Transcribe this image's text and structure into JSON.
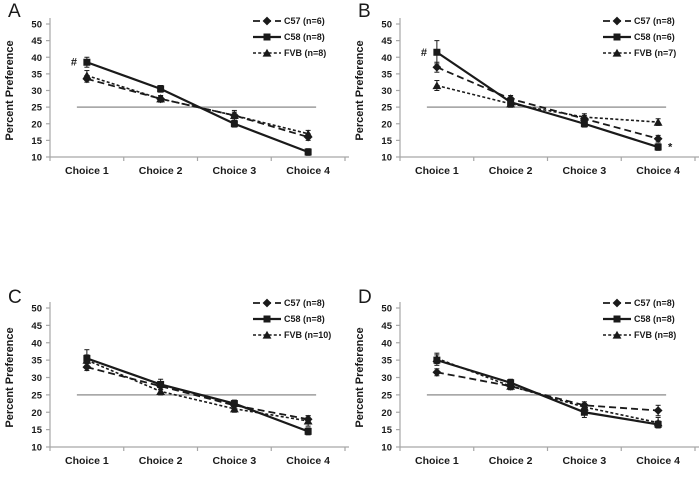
{
  "figure": {
    "background": "#ffffff",
    "text_color": "#1a1a1a",
    "axis_color": "#a6a6a6",
    "series_color": "#1a1a1a",
    "reference_line_color": "#9d9d9d"
  },
  "chart_data": [
    {
      "panel": "A",
      "type": "line",
      "categories": [
        "Choice 1",
        "Choice 2",
        "Choice 3",
        "Choice 4"
      ],
      "xlabel": "",
      "ylabel": "Percent Preference",
      "ylim": [
        10,
        50
      ],
      "yticks": [
        10,
        15,
        20,
        25,
        30,
        35,
        40,
        45,
        50
      ],
      "reference_y": 25,
      "grid": false,
      "legend_position": "top-right",
      "series": [
        {
          "name": "C57 (n=6)",
          "marker": "diamond",
          "line_style": "dashed",
          "values": [
            33.5,
            27.5,
            22.5,
            16
          ],
          "errors": [
            1,
            1,
            1,
            1
          ]
        },
        {
          "name": "C58 (n=8)",
          "marker": "square",
          "line_style": "solid",
          "values": [
            38.5,
            30.5,
            20,
            11.5
          ],
          "errors": [
            1.5,
            1,
            1,
            1
          ]
        },
        {
          "name": "FVB (n=8)",
          "marker": "triangle",
          "line_style": "dotted",
          "values": [
            34.5,
            27.5,
            22.5,
            17
          ],
          "errors": [
            1.5,
            0.8,
            1.5,
            1
          ]
        }
      ],
      "annotations": [
        {
          "text": "#",
          "category_index": 0,
          "value": 38.5,
          "side": "left"
        }
      ]
    },
    {
      "panel": "B",
      "type": "line",
      "categories": [
        "Choice 1",
        "Choice 2",
        "Choice 3",
        "Choice 4"
      ],
      "xlabel": "",
      "ylabel": "Percent Preference",
      "ylim": [
        10,
        50
      ],
      "yticks": [
        10,
        15,
        20,
        25,
        30,
        35,
        40,
        45,
        50
      ],
      "reference_y": 25,
      "grid": false,
      "legend_position": "top-right",
      "series": [
        {
          "name": "C57 (n=8)",
          "marker": "diamond",
          "line_style": "dashed",
          "values": [
            37,
            27.5,
            21.5,
            15.5
          ],
          "errors": [
            1.5,
            1,
            1,
            1
          ]
        },
        {
          "name": "C58 (n=6)",
          "marker": "square",
          "line_style": "solid",
          "values": [
            41.5,
            26.5,
            20,
            13
          ],
          "errors": [
            3.5,
            1.5,
            1,
            1
          ]
        },
        {
          "name": "FVB (n=7)",
          "marker": "triangle",
          "line_style": "dotted",
          "values": [
            31.5,
            26,
            22,
            20.5
          ],
          "errors": [
            1.5,
            1,
            1,
            1
          ]
        }
      ],
      "annotations": [
        {
          "text": "#",
          "category_index": 0,
          "value": 41.5,
          "side": "left"
        },
        {
          "text": "*",
          "category_index": 3,
          "value": 13,
          "side": "right"
        }
      ]
    },
    {
      "panel": "C",
      "type": "line",
      "categories": [
        "Choice 1",
        "Choice 2",
        "Choice 3",
        "Choice 4"
      ],
      "xlabel": "",
      "ylabel": "Percent Preference",
      "ylim": [
        10,
        50
      ],
      "yticks": [
        10,
        15,
        20,
        25,
        30,
        35,
        40,
        45,
        50
      ],
      "reference_y": 25,
      "grid": false,
      "legend_position": "top-right",
      "series": [
        {
          "name": "C57 (n=8)",
          "marker": "diamond",
          "line_style": "dashed",
          "values": [
            33,
            27.5,
            22,
            18
          ],
          "errors": [
            1,
            1,
            1,
            1
          ]
        },
        {
          "name": "C58 (n=8)",
          "marker": "square",
          "line_style": "solid",
          "values": [
            35.5,
            28,
            22.5,
            14.5
          ],
          "errors": [
            2.5,
            1.5,
            1,
            1
          ]
        },
        {
          "name": "FVB (n=10)",
          "marker": "triangle",
          "line_style": "dotted",
          "values": [
            35,
            26,
            21,
            17.5
          ],
          "errors": [
            1.5,
            1,
            1,
            1.5
          ]
        }
      ],
      "annotations": []
    },
    {
      "panel": "D",
      "type": "line",
      "categories": [
        "Choice 1",
        "Choice 2",
        "Choice 3",
        "Choice 4"
      ],
      "xlabel": "",
      "ylabel": "Percent Preference",
      "ylim": [
        10,
        50
      ],
      "yticks": [
        10,
        15,
        20,
        25,
        30,
        35,
        40,
        45,
        50
      ],
      "reference_y": 25,
      "grid": false,
      "legend_position": "top-right",
      "series": [
        {
          "name": "C57 (n=8)",
          "marker": "diamond",
          "line_style": "dashed",
          "values": [
            31.5,
            27.5,
            22,
            20.5
          ],
          "errors": [
            1,
            1,
            1,
            1.5
          ]
        },
        {
          "name": "C58 (n=8)",
          "marker": "square",
          "line_style": "solid",
          "values": [
            35,
            28.5,
            20,
            16.5
          ],
          "errors": [
            1.5,
            1,
            1.5,
            1
          ]
        },
        {
          "name": "FVB (n=8)",
          "marker": "triangle",
          "line_style": "dotted",
          "values": [
            35.5,
            27.5,
            21.5,
            17
          ],
          "errors": [
            1.5,
            1,
            1,
            1.5
          ]
        }
      ],
      "annotations": []
    }
  ]
}
